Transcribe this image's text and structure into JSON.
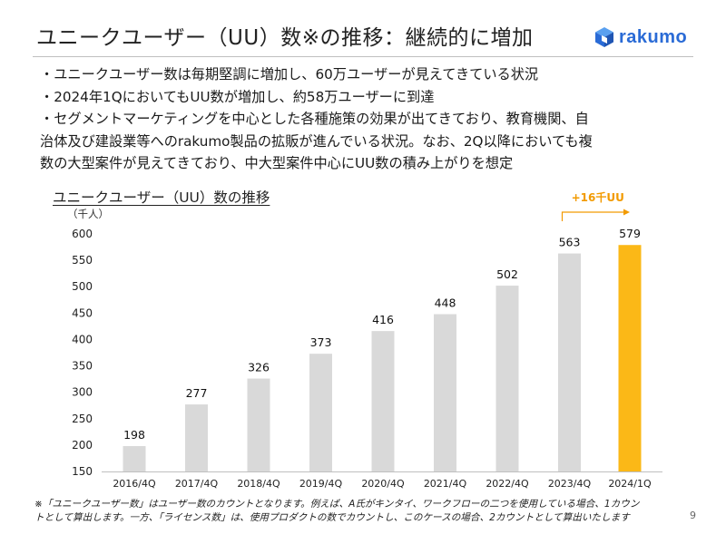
{
  "slide": {
    "title": "ユニークユーザー（UU）数※の推移：継続的に増加",
    "logo_text": "rakumo",
    "bullets": [
      "・ユニークユーザー数は毎期堅調に増加し、60万ユーザーが見えてきている状況",
      "・2024年1QにおいてもUU数が増加し、約58万ユーザーに到達",
      "・セグメントマーケティングを中心とした各種施策の効果が出てきており、教育機関、自",
      "治体及び建設業等へのrakumo製品の拡販が進んでいる状況。なお、2Q以降においても複",
      "数の大型案件が見えてきており、中大型案件中心にUU数の積み上がりを想定"
    ],
    "footnote_line1": "※「ユニークユーザー数」はユーザー数のカウントとなります。例えば、A氏がキンタイ、ワークフローの二つを使用している場合、1カウン",
    "footnote_line2": "トとして算出します。一方、「ライセンス数」は、使用プロダクトの数でカウントし、このケースの場合、2カウントとして算出いたします",
    "page_number": "9"
  },
  "colors": {
    "bar_default": "#d9d9d9",
    "bar_highlight": "#fbb817",
    "annotation": "#f29a00",
    "logo": "#2a6bd6"
  },
  "chart_data": {
    "type": "bar",
    "title": "ユニークユーザー（UU）数の推移",
    "unit_label": "（千人）",
    "categories": [
      "2016/4Q",
      "2017/4Q",
      "2018/4Q",
      "2019/4Q",
      "2020/4Q",
      "2021/4Q",
      "2022/4Q",
      "2023/4Q",
      "2024/1Q"
    ],
    "values": [
      198,
      277,
      326,
      373,
      416,
      448,
      502,
      563,
      579
    ],
    "highlight_index": 8,
    "ylim": [
      150,
      600
    ],
    "yticks": [
      150,
      200,
      250,
      300,
      350,
      400,
      450,
      500,
      550,
      600
    ],
    "annotation": "+16千UU",
    "grid": false
  }
}
